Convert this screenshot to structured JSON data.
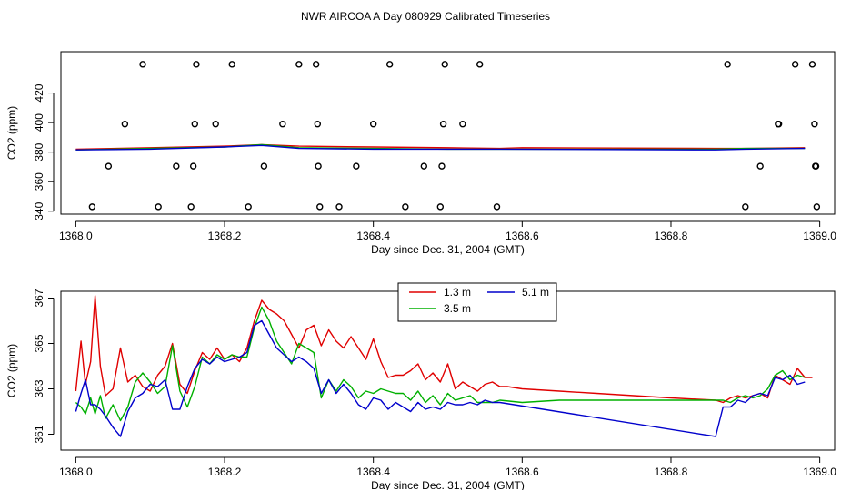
{
  "page_title": "NWR AIRCOA A  Day 080929  Calibrated Timeseries",
  "colors": {
    "red": "#e00000",
    "green": "#00b000",
    "blue": "#0000cc",
    "black": "#000000"
  },
  "chart_data": [
    {
      "type": "scatter",
      "title": "NWR AIRCOA A  Day 080929  Calibrated Timeseries",
      "xlabel": "Day since Dec. 31, 2004 (GMT)",
      "ylabel": "CO2 (ppm)",
      "xlim": [
        1367.98,
        1369.02
      ],
      "ylim": [
        338,
        448
      ],
      "xticks": [
        1368.0,
        1368.2,
        1368.4,
        1368.6,
        1368.8,
        1369.0
      ],
      "xtick_labels": [
        "1368.0",
        "1368.2",
        "1368.4",
        "1368.6",
        "1368.8",
        "1369.0"
      ],
      "yticks": [
        340,
        360,
        380,
        400,
        420
      ],
      "ytick_labels": [
        "340",
        "360",
        "380",
        "400",
        "420"
      ],
      "calibration_points": [
        {
          "x": 1368.09,
          "y": 439.5
        },
        {
          "x": 1368.162,
          "y": 439.5
        },
        {
          "x": 1368.21,
          "y": 439.5
        },
        {
          "x": 1368.3,
          "y": 439.5
        },
        {
          "x": 1368.323,
          "y": 439.5
        },
        {
          "x": 1368.422,
          "y": 439.5
        },
        {
          "x": 1368.496,
          "y": 439.5
        },
        {
          "x": 1368.543,
          "y": 439.5
        },
        {
          "x": 1368.876,
          "y": 439.5
        },
        {
          "x": 1368.967,
          "y": 439.5
        },
        {
          "x": 1368.99,
          "y": 439.5
        },
        {
          "x": 1368.066,
          "y": 399
        },
        {
          "x": 1368.16,
          "y": 399
        },
        {
          "x": 1368.188,
          "y": 399
        },
        {
          "x": 1368.278,
          "y": 399
        },
        {
          "x": 1368.325,
          "y": 399
        },
        {
          "x": 1368.4,
          "y": 399
        },
        {
          "x": 1368.494,
          "y": 399
        },
        {
          "x": 1368.52,
          "y": 399
        },
        {
          "x": 1368.944,
          "y": 399
        },
        {
          "x": 1368.945,
          "y": 399
        },
        {
          "x": 1368.993,
          "y": 399
        },
        {
          "x": 1368.044,
          "y": 370.5
        },
        {
          "x": 1368.135,
          "y": 370.5
        },
        {
          "x": 1368.158,
          "y": 370.5
        },
        {
          "x": 1368.253,
          "y": 370.5
        },
        {
          "x": 1368.326,
          "y": 370.5
        },
        {
          "x": 1368.377,
          "y": 370.5
        },
        {
          "x": 1368.468,
          "y": 370.5
        },
        {
          "x": 1368.492,
          "y": 370.5
        },
        {
          "x": 1368.92,
          "y": 370.5
        },
        {
          "x": 1368.994,
          "y": 370.5
        },
        {
          "x": 1368.995,
          "y": 370.5
        },
        {
          "x": 1368.022,
          "y": 343
        },
        {
          "x": 1368.111,
          "y": 343
        },
        {
          "x": 1368.155,
          "y": 343
        },
        {
          "x": 1368.232,
          "y": 343
        },
        {
          "x": 1368.328,
          "y": 343
        },
        {
          "x": 1368.354,
          "y": 343
        },
        {
          "x": 1368.443,
          "y": 343
        },
        {
          "x": 1368.49,
          "y": 343
        },
        {
          "x": 1368.566,
          "y": 343
        },
        {
          "x": 1368.9,
          "y": 343
        },
        {
          "x": 1368.996,
          "y": 343
        }
      ],
      "series": [
        {
          "name": "1.3 m",
          "color": "#e00000",
          "x": [
            1368.0,
            1368.1,
            1368.2,
            1368.25,
            1368.3,
            1368.4,
            1368.5,
            1368.57,
            1368.6,
            1368.86,
            1368.9,
            1368.98
          ],
          "y": [
            382,
            383,
            384,
            385,
            384,
            383.5,
            383,
            382.5,
            383,
            382.5,
            382.5,
            383
          ]
        },
        {
          "name": "3.5 m",
          "color": "#00b000",
          "x": [
            1368.0,
            1368.1,
            1368.2,
            1368.25,
            1368.3,
            1368.4,
            1368.5,
            1368.57,
            1368.86,
            1368.9,
            1368.98
          ],
          "y": [
            381.5,
            382.5,
            383.5,
            385,
            383,
            382.5,
            382,
            382,
            382,
            382.5,
            382.5
          ]
        },
        {
          "name": "5.1 m",
          "color": "#0000cc",
          "x": [
            1368.0,
            1368.1,
            1368.2,
            1368.25,
            1368.3,
            1368.4,
            1368.5,
            1368.57,
            1368.86,
            1368.9,
            1368.98
          ],
          "y": [
            381.5,
            382,
            383.5,
            384.5,
            382.5,
            382,
            382,
            382,
            381.5,
            382,
            382.5
          ]
        }
      ]
    },
    {
      "type": "line",
      "xlabel": "Day since Dec. 31, 2004 (GMT)",
      "ylabel": "CO2 (ppm)",
      "xlim": [
        1367.98,
        1369.02
      ],
      "ylim": [
        360.3,
        367.3
      ],
      "xticks": [
        1368.0,
        1368.2,
        1368.4,
        1368.6,
        1368.8,
        1369.0
      ],
      "xtick_labels": [
        "1368.0",
        "1368.2",
        "1368.4",
        "1368.6",
        "1368.8",
        "1369.0"
      ],
      "yticks": [
        361,
        363,
        365,
        367
      ],
      "ytick_labels": [
        "361",
        "363",
        "365",
        "367"
      ],
      "legend": [
        "1.3 m",
        "3.5 m",
        "5.1 m"
      ],
      "legend_position": "top-center",
      "series": [
        {
          "name": "1.3 m",
          "color": "#e00000",
          "x": [
            1368.0,
            1368.007,
            1368.013,
            1368.02,
            1368.026,
            1368.033,
            1368.04,
            1368.05,
            1368.06,
            1368.07,
            1368.08,
            1368.09,
            1368.1,
            1368.11,
            1368.12,
            1368.13,
            1368.14,
            1368.15,
            1368.16,
            1368.17,
            1368.18,
            1368.19,
            1368.2,
            1368.21,
            1368.22,
            1368.23,
            1368.24,
            1368.25,
            1368.26,
            1368.27,
            1368.28,
            1368.29,
            1368.3,
            1368.31,
            1368.32,
            1368.33,
            1368.34,
            1368.35,
            1368.36,
            1368.37,
            1368.38,
            1368.39,
            1368.4,
            1368.41,
            1368.42,
            1368.43,
            1368.44,
            1368.45,
            1368.46,
            1368.47,
            1368.48,
            1368.49,
            1368.5,
            1368.51,
            1368.52,
            1368.53,
            1368.54,
            1368.55,
            1368.56,
            1368.57,
            1368.58,
            1368.6,
            1368.65,
            1368.7,
            1368.75,
            1368.8,
            1368.86,
            1368.87,
            1368.88,
            1368.89,
            1368.9,
            1368.91,
            1368.92,
            1368.93,
            1368.94,
            1368.95,
            1368.96,
            1368.97,
            1368.98,
            1368.99
          ],
          "y": [
            362.9,
            365.1,
            363.2,
            364.2,
            367.1,
            364.0,
            362.7,
            363.0,
            364.8,
            363.3,
            363.6,
            363.1,
            362.9,
            363.6,
            364.0,
            365.0,
            363.2,
            362.8,
            363.8,
            364.6,
            364.3,
            364.8,
            364.3,
            364.5,
            364.2,
            364.8,
            366.0,
            366.9,
            366.5,
            366.3,
            366.0,
            365.4,
            364.8,
            365.6,
            365.8,
            364.9,
            365.6,
            365.1,
            364.8,
            365.3,
            364.8,
            364.3,
            365.2,
            364.2,
            363.5,
            363.6,
            363.6,
            363.8,
            364.1,
            363.4,
            363.7,
            363.3,
            364.1,
            363.0,
            363.3,
            363.1,
            362.9,
            363.2,
            363.3,
            363.1,
            363.1,
            363.0,
            362.9,
            362.8,
            362.7,
            362.6,
            362.5,
            362.4,
            362.6,
            362.7,
            362.6,
            362.7,
            362.8,
            362.6,
            363.6,
            363.4,
            363.2,
            363.9,
            363.5,
            363.5
          ]
        },
        {
          "name": "3.5 m",
          "color": "#00b000",
          "x": [
            1368.0,
            1368.007,
            1368.013,
            1368.02,
            1368.026,
            1368.033,
            1368.04,
            1368.05,
            1368.06,
            1368.07,
            1368.08,
            1368.09,
            1368.1,
            1368.11,
            1368.12,
            1368.13,
            1368.14,
            1368.15,
            1368.16,
            1368.17,
            1368.18,
            1368.19,
            1368.2,
            1368.21,
            1368.22,
            1368.23,
            1368.24,
            1368.25,
            1368.26,
            1368.27,
            1368.28,
            1368.29,
            1368.3,
            1368.31,
            1368.32,
            1368.33,
            1368.34,
            1368.35,
            1368.36,
            1368.37,
            1368.38,
            1368.39,
            1368.4,
            1368.41,
            1368.42,
            1368.43,
            1368.44,
            1368.45,
            1368.46,
            1368.47,
            1368.48,
            1368.49,
            1368.5,
            1368.51,
            1368.52,
            1368.53,
            1368.54,
            1368.55,
            1368.56,
            1368.57,
            1368.6,
            1368.65,
            1368.7,
            1368.75,
            1368.8,
            1368.86,
            1368.87,
            1368.88,
            1368.89,
            1368.9,
            1368.91,
            1368.92,
            1368.93,
            1368.94,
            1368.95,
            1368.96,
            1368.97,
            1368.98
          ],
          "y": [
            362.4,
            362.2,
            361.9,
            362.6,
            361.9,
            362.7,
            361.7,
            362.3,
            361.6,
            362.2,
            363.3,
            363.7,
            363.3,
            362.8,
            363.1,
            364.9,
            362.9,
            362.2,
            363.1,
            364.4,
            364.1,
            364.5,
            364.3,
            364.5,
            364.4,
            364.4,
            365.7,
            366.6,
            366.0,
            365.1,
            364.6,
            364.1,
            365.0,
            364.8,
            364.6,
            362.6,
            363.4,
            362.9,
            363.4,
            363.1,
            362.6,
            362.9,
            362.8,
            363.0,
            362.9,
            362.8,
            362.8,
            362.5,
            362.9,
            362.4,
            362.7,
            362.3,
            362.8,
            362.5,
            362.6,
            362.7,
            362.4,
            362.4,
            362.4,
            362.5,
            362.4,
            362.5,
            362.5,
            362.5,
            362.5,
            362.5,
            362.5,
            362.4,
            362.6,
            362.7,
            362.6,
            362.7,
            363.0,
            363.6,
            363.8,
            363.4,
            363.6,
            363.5
          ]
        },
        {
          "name": "5.1 m",
          "color": "#0000cc",
          "x": [
            1368.0,
            1368.007,
            1368.013,
            1368.02,
            1368.026,
            1368.033,
            1368.04,
            1368.05,
            1368.06,
            1368.07,
            1368.08,
            1368.09,
            1368.1,
            1368.11,
            1368.12,
            1368.13,
            1368.14,
            1368.15,
            1368.16,
            1368.17,
            1368.18,
            1368.19,
            1368.2,
            1368.21,
            1368.22,
            1368.23,
            1368.24,
            1368.25,
            1368.26,
            1368.27,
            1368.28,
            1368.29,
            1368.3,
            1368.31,
            1368.32,
            1368.33,
            1368.34,
            1368.35,
            1368.36,
            1368.37,
            1368.38,
            1368.39,
            1368.4,
            1368.41,
            1368.42,
            1368.43,
            1368.44,
            1368.45,
            1368.46,
            1368.47,
            1368.48,
            1368.49,
            1368.5,
            1368.51,
            1368.52,
            1368.53,
            1368.54,
            1368.55,
            1368.56,
            1368.57,
            1368.86,
            1368.87,
            1368.88,
            1368.89,
            1368.9,
            1368.91,
            1368.92,
            1368.93,
            1368.94,
            1368.95,
            1368.96,
            1368.97,
            1368.98
          ],
          "y": [
            362.0,
            362.8,
            363.4,
            362.3,
            362.3,
            362.1,
            361.8,
            361.3,
            360.9,
            362.0,
            362.6,
            362.8,
            363.2,
            363.1,
            363.4,
            362.1,
            362.1,
            363.1,
            363.9,
            364.3,
            364.1,
            364.4,
            364.2,
            364.3,
            364.4,
            364.6,
            365.8,
            366.0,
            365.4,
            364.8,
            364.5,
            364.2,
            364.4,
            364.2,
            363.9,
            362.8,
            363.4,
            362.8,
            363.2,
            362.8,
            362.3,
            362.1,
            362.6,
            362.5,
            362.1,
            362.4,
            362.2,
            362.0,
            362.4,
            362.1,
            362.2,
            362.1,
            362.4,
            362.3,
            362.3,
            362.4,
            362.3,
            362.5,
            362.4,
            362.4,
            360.9,
            362.2,
            362.2,
            362.5,
            362.4,
            362.7,
            362.8,
            362.7,
            363.5,
            363.4,
            363.6,
            363.2,
            363.3
          ]
        }
      ]
    }
  ]
}
